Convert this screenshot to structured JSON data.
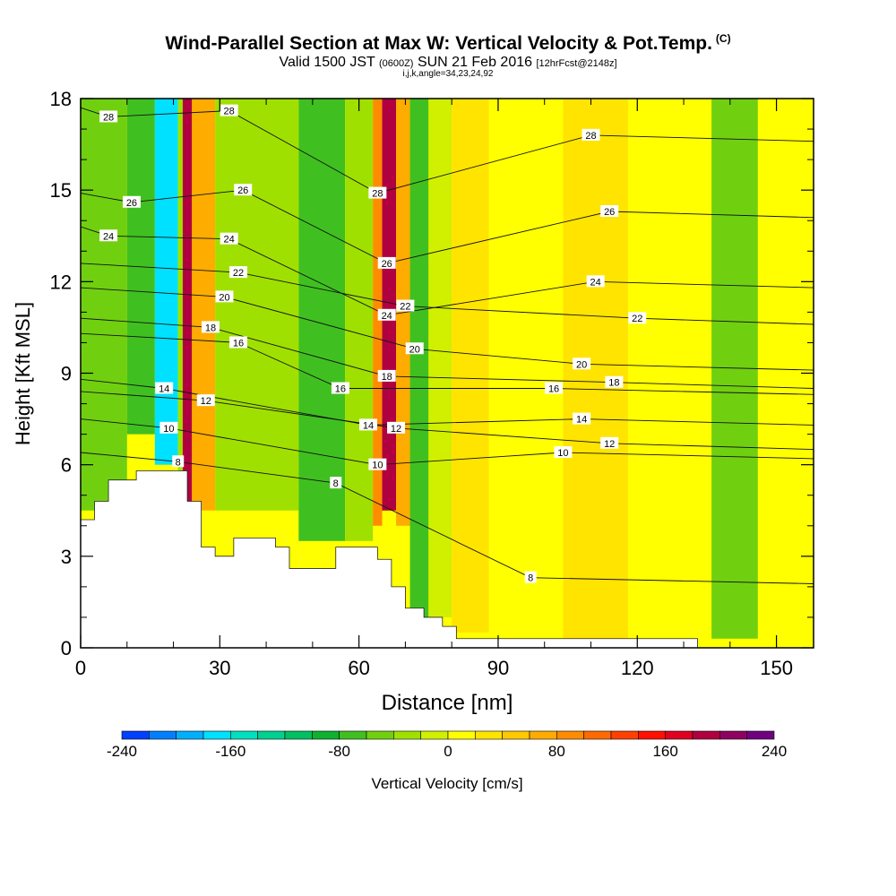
{
  "chart_data": {
    "type": "heatmap",
    "title": "Wind-Parallel Section at Max W: Vertical Velocity & Pot.Temp.",
    "title_tag": "(C)",
    "subtitle_parts": {
      "a": "Valid 1500 JST",
      "b": "(0600Z)",
      "c": "SUN 21 Feb 2016",
      "d": "[12hrFcst@2148z]"
    },
    "subsubtitle": "i,j,k,angle=34,23,24,92",
    "xlabel": "Distance [nm]",
    "ylabel": "Height [Kft MSL]",
    "xlim": [
      0,
      158
    ],
    "ylim": [
      0,
      18
    ],
    "x_ticks": [
      0,
      30,
      60,
      90,
      120,
      150
    ],
    "y_ticks": [
      0,
      3,
      6,
      9,
      12,
      15,
      18
    ],
    "colorbar": {
      "label": "Vertical Velocity [cm/s]",
      "min": -240,
      "max": 240,
      "tick_labels": [
        -240,
        -160,
        -80,
        0,
        80,
        160,
        240
      ],
      "colors": [
        "#0000ff",
        "#0040ff",
        "#0080ff",
        "#00b0ff",
        "#00e0ff",
        "#00e0c0",
        "#00d090",
        "#00c060",
        "#10b030",
        "#40c020",
        "#70d010",
        "#a0e000",
        "#d0f000",
        "#ffff00",
        "#ffe400",
        "#ffc800",
        "#ffac00",
        "#ff8c00",
        "#ff6a00",
        "#ff4000",
        "#ff1000",
        "#e00020",
        "#b00040",
        "#900060",
        "#700080",
        "#500090"
      ]
    },
    "velocity_cells_cm_s": [
      {
        "x": [
          0,
          10
        ],
        "y": [
          4.5,
          18
        ],
        "value": -40
      },
      {
        "x": [
          10,
          16
        ],
        "y": [
          7,
          18
        ],
        "value": -70
      },
      {
        "x": [
          16,
          21
        ],
        "y": [
          6,
          18
        ],
        "value": -150
      },
      {
        "x": [
          21,
          22
        ],
        "y": [
          5,
          18
        ],
        "value": -20
      },
      {
        "x": [
          22,
          24
        ],
        "y": [
          4.8,
          18
        ],
        "value": 170
      },
      {
        "x": [
          24,
          29
        ],
        "y": [
          4.5,
          18
        ],
        "value": 60
      },
      {
        "x": [
          29,
          47
        ],
        "y": [
          4.5,
          18
        ],
        "value": -20
      },
      {
        "x": [
          47,
          57
        ],
        "y": [
          3.5,
          18
        ],
        "value": -70
      },
      {
        "x": [
          57,
          63
        ],
        "y": [
          3.5,
          18
        ],
        "value": -20
      },
      {
        "x": [
          63,
          65
        ],
        "y": [
          4,
          18
        ],
        "value": 80
      },
      {
        "x": [
          65,
          68
        ],
        "y": [
          4.5,
          18
        ],
        "value": 180
      },
      {
        "x": [
          68,
          71
        ],
        "y": [
          4,
          18
        ],
        "value": 60
      },
      {
        "x": [
          71,
          75
        ],
        "y": [
          1,
          18
        ],
        "value": -60
      },
      {
        "x": [
          75,
          80
        ],
        "y": [
          1,
          18
        ],
        "value": -10
      },
      {
        "x": [
          80,
          88
        ],
        "y": [
          0.5,
          18
        ],
        "value": 30
      },
      {
        "x": [
          88,
          104
        ],
        "y": [
          0.3,
          18
        ],
        "value": 5
      },
      {
        "x": [
          104,
          118
        ],
        "y": [
          0.3,
          18
        ],
        "value": 20
      },
      {
        "x": [
          118,
          136
        ],
        "y": [
          0.3,
          18
        ],
        "value": 10
      },
      {
        "x": [
          136,
          146
        ],
        "y": [
          0.3,
          18
        ],
        "value": -40
      },
      {
        "x": [
          146,
          158
        ],
        "y": [
          0.3,
          18
        ],
        "value": 10
      }
    ],
    "terrain_outline": [
      [
        0,
        4.2
      ],
      [
        3,
        4.2
      ],
      [
        3,
        4.8
      ],
      [
        6,
        4.8
      ],
      [
        6,
        5.5
      ],
      [
        12,
        5.5
      ],
      [
        12,
        5.8
      ],
      [
        23,
        5.8
      ],
      [
        23,
        4.8
      ],
      [
        26,
        4.8
      ],
      [
        26,
        3.3
      ],
      [
        29,
        3.3
      ],
      [
        29,
        3
      ],
      [
        33,
        3
      ],
      [
        33,
        3.6
      ],
      [
        42,
        3.6
      ],
      [
        42,
        3.3
      ],
      [
        45,
        3.3
      ],
      [
        45,
        2.6
      ],
      [
        55,
        2.6
      ],
      [
        55,
        3.3
      ],
      [
        64,
        3.3
      ],
      [
        64,
        2.9
      ],
      [
        67,
        2.9
      ],
      [
        67,
        2
      ],
      [
        70,
        2
      ],
      [
        70,
        1.3
      ],
      [
        74,
        1.3
      ],
      [
        74,
        1
      ],
      [
        78,
        1
      ],
      [
        78,
        0.7
      ],
      [
        81,
        0.7
      ],
      [
        81,
        0.3
      ],
      [
        133,
        0.3
      ],
      [
        133,
        0
      ],
      [
        158,
        0
      ]
    ],
    "theta_contour_labels_C": [
      {
        "x": 6,
        "y": 17.4,
        "value": "28"
      },
      {
        "x": 32,
        "y": 17.6,
        "value": "28"
      },
      {
        "x": 110,
        "y": 16.8,
        "value": "28"
      },
      {
        "x": 64,
        "y": 14.9,
        "value": "28"
      },
      {
        "x": 11,
        "y": 14.6,
        "value": "26"
      },
      {
        "x": 35,
        "y": 15.0,
        "value": "26"
      },
      {
        "x": 66,
        "y": 12.6,
        "value": "26"
      },
      {
        "x": 114,
        "y": 14.3,
        "value": "26"
      },
      {
        "x": 6,
        "y": 13.5,
        "value": "24"
      },
      {
        "x": 32,
        "y": 13.4,
        "value": "24"
      },
      {
        "x": 66,
        "y": 10.9,
        "value": "24"
      },
      {
        "x": 111,
        "y": 12.0,
        "value": "24"
      },
      {
        "x": 34,
        "y": 12.3,
        "value": "22"
      },
      {
        "x": 70,
        "y": 11.2,
        "value": "22"
      },
      {
        "x": 120,
        "y": 10.8,
        "value": "22"
      },
      {
        "x": 31,
        "y": 11.5,
        "value": "20"
      },
      {
        "x": 72,
        "y": 9.8,
        "value": "20"
      },
      {
        "x": 108,
        "y": 9.3,
        "value": "20"
      },
      {
        "x": 28,
        "y": 10.5,
        "value": "18"
      },
      {
        "x": 66,
        "y": 8.9,
        "value": "18"
      },
      {
        "x": 115,
        "y": 8.7,
        "value": "18"
      },
      {
        "x": 34,
        "y": 10.0,
        "value": "16"
      },
      {
        "x": 56,
        "y": 8.5,
        "value": "16"
      },
      {
        "x": 102,
        "y": 8.5,
        "value": "16"
      },
      {
        "x": 18,
        "y": 8.5,
        "value": "14"
      },
      {
        "x": 62,
        "y": 7.3,
        "value": "14"
      },
      {
        "x": 108,
        "y": 7.5,
        "value": "14"
      },
      {
        "x": 27,
        "y": 8.1,
        "value": "12"
      },
      {
        "x": 68,
        "y": 7.2,
        "value": "12"
      },
      {
        "x": 114,
        "y": 6.7,
        "value": "12"
      },
      {
        "x": 19,
        "y": 7.2,
        "value": "10"
      },
      {
        "x": 64,
        "y": 6.0,
        "value": "10"
      },
      {
        "x": 104,
        "y": 6.4,
        "value": "10"
      },
      {
        "x": 21,
        "y": 6.1,
        "value": "8"
      },
      {
        "x": 55,
        "y": 5.4,
        "value": "8"
      },
      {
        "x": 97,
        "y": 2.3,
        "value": "8"
      }
    ]
  }
}
